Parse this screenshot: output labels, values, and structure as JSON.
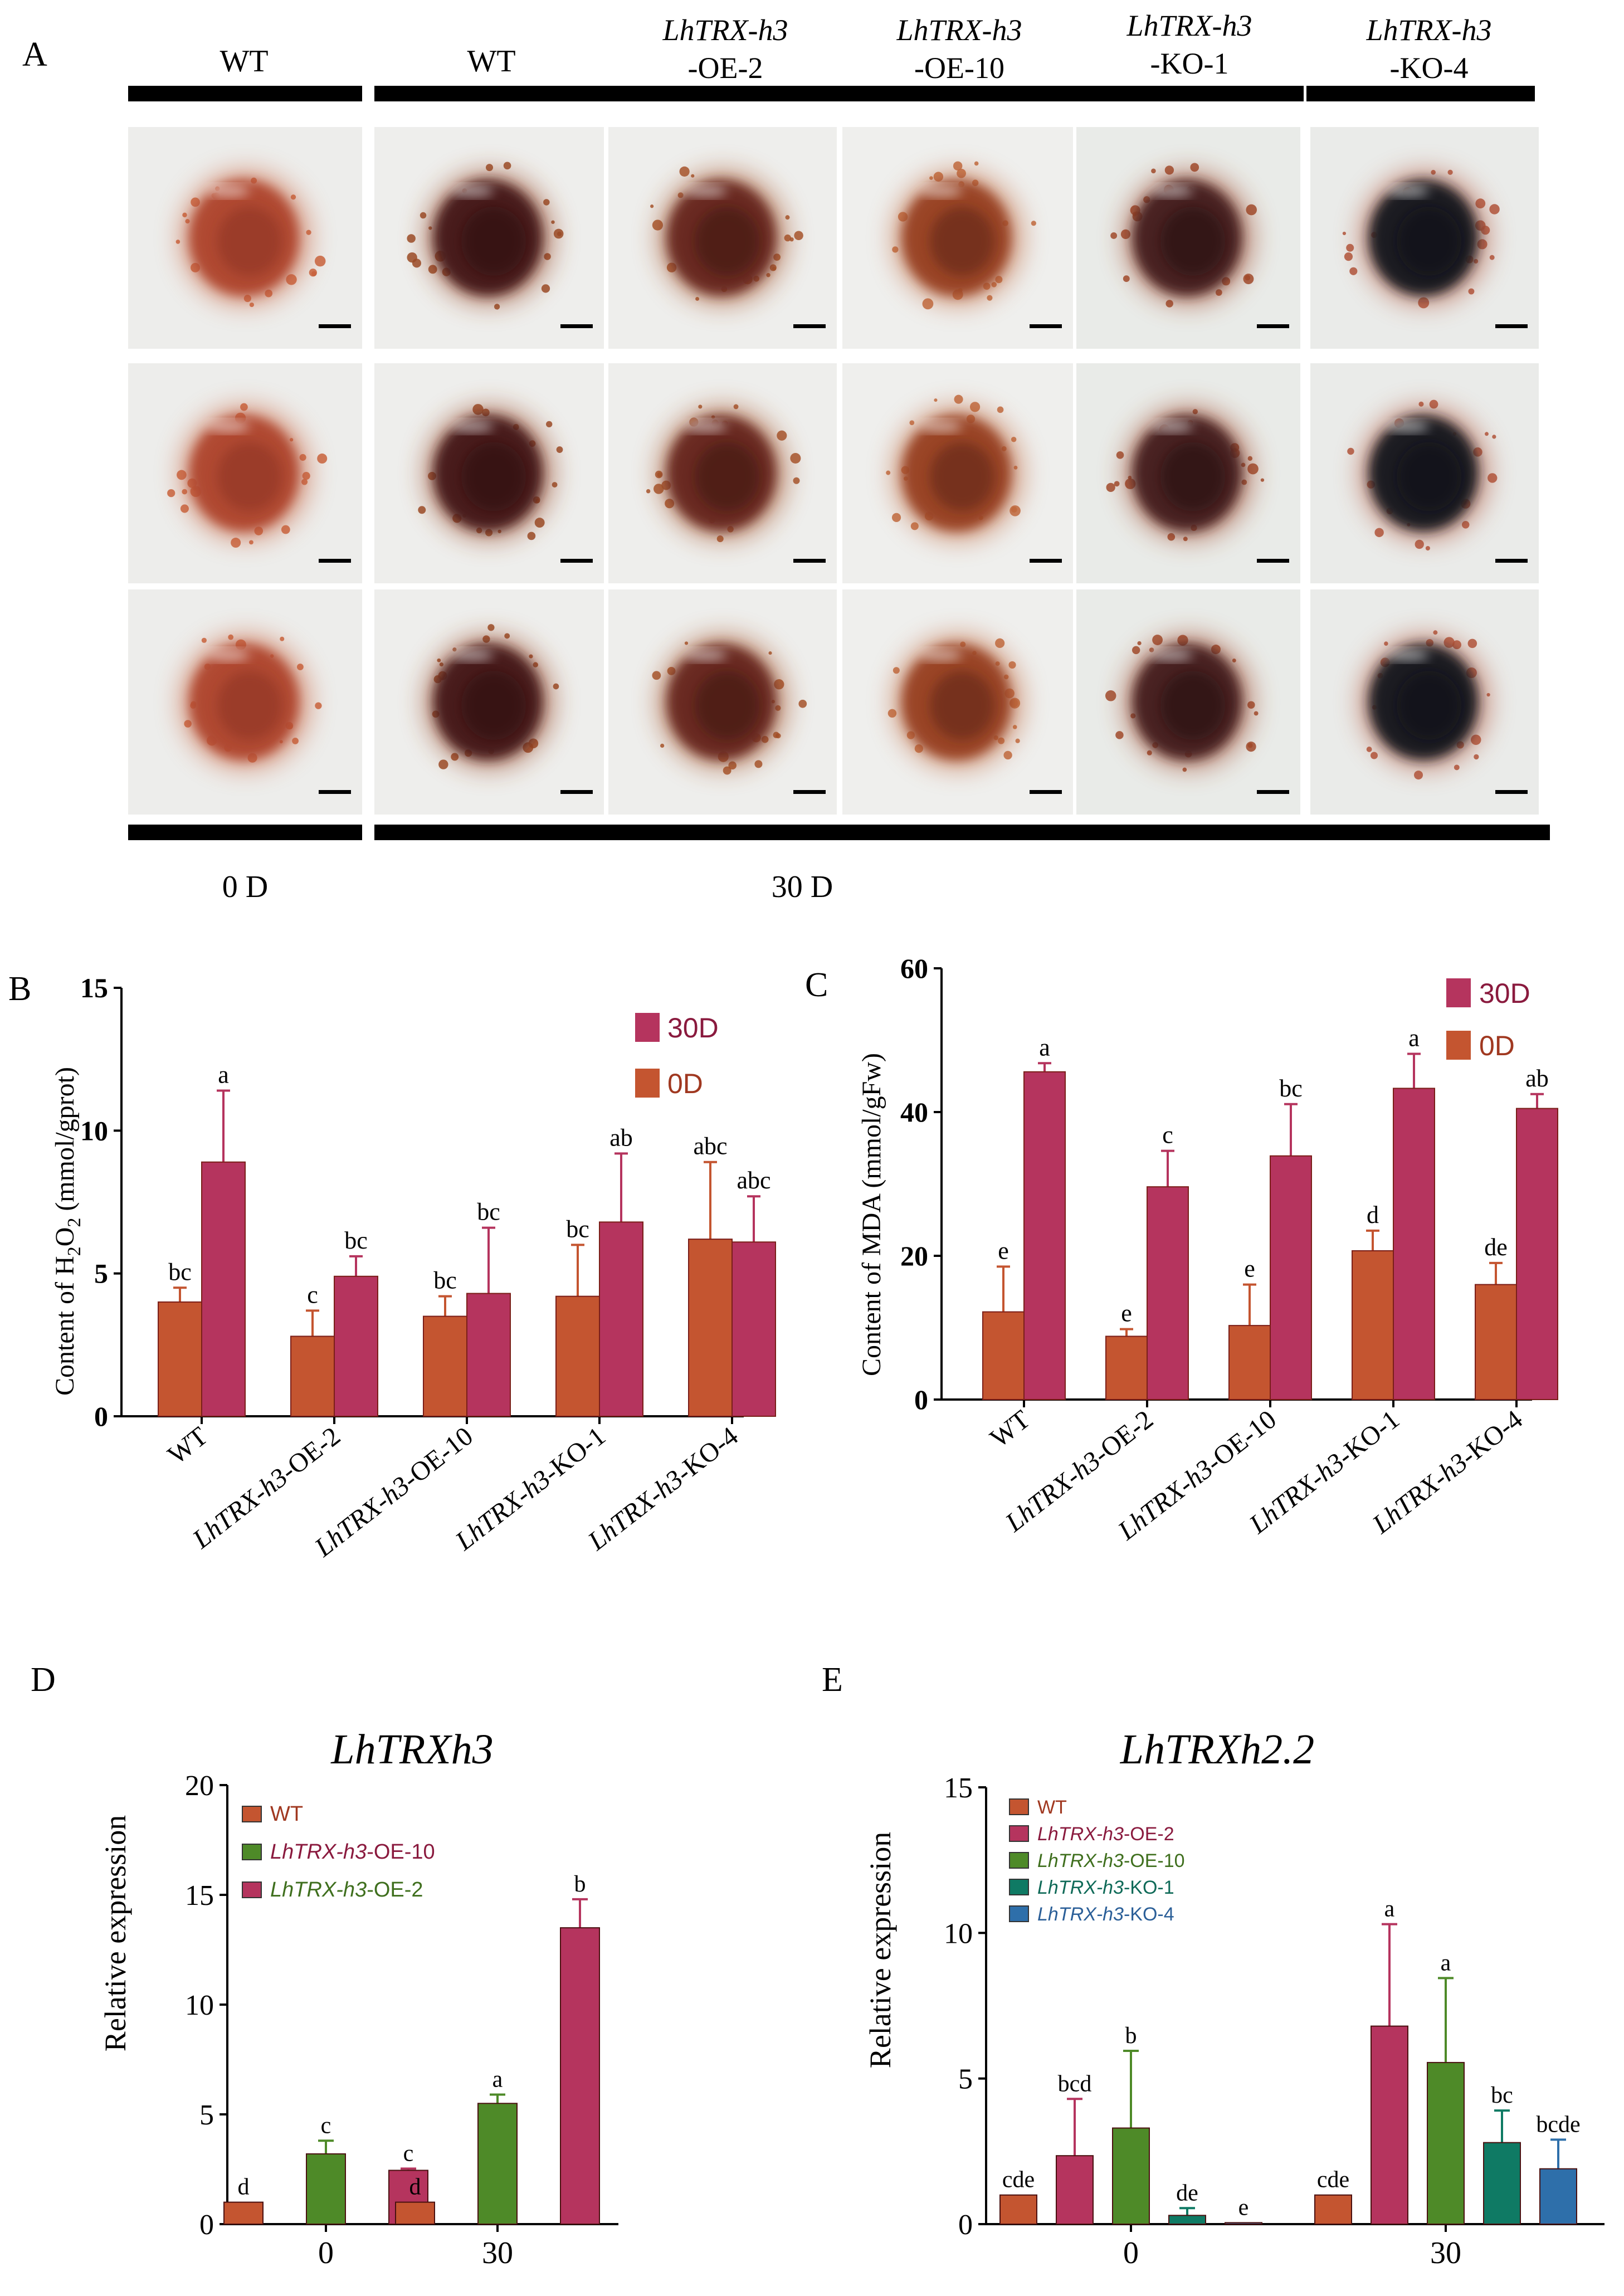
{
  "panel_a": {
    "letter": "A",
    "columns": [
      {
        "italic": "",
        "plain": "WT"
      },
      {
        "italic": "",
        "plain": "WT"
      },
      {
        "italic": "LhTRX-h3",
        "plain": "-OE-2"
      },
      {
        "italic": "LhTRX-h3",
        "plain": "-OE-10"
      },
      {
        "italic": "LhTRX-h3",
        "plain": "-KO-1"
      },
      {
        "italic": "LhTRX-h3",
        "plain": "-KO-4"
      }
    ],
    "time_labels": [
      "0 D",
      "30 D"
    ],
    "photo_styles": [
      {
        "bg": "#ededeb",
        "core": "#b04a30",
        "dark": "#8a3020",
        "spots": "#c8623c"
      },
      {
        "bg": "#eeeeec",
        "core": "#4a1c1c",
        "dark": "#2a0c0c",
        "spots": "#9a4a26"
      },
      {
        "bg": "#eeeeec",
        "core": "#6a2a20",
        "dark": "#3a1410",
        "spots": "#a6542c"
      },
      {
        "bg": "#efefed",
        "core": "#9a4428",
        "dark": "#5a2218",
        "spots": "#c0683c"
      },
      {
        "bg": "#e9ebe8",
        "core": "#4a2420",
        "dark": "#241010",
        "spots": "#a04a2a"
      },
      {
        "bg": "#eaebe9",
        "core": "#1c1c24",
        "dark": "#0c0c12",
        "spots": "#b0543a"
      }
    ]
  },
  "panel_b": {
    "letter": "B",
    "ylabel_pre": "Content of H",
    "ylabel_sub1": "2",
    "ylabel_mid": "O",
    "ylabel_sub2": "2",
    "ylabel_post": " (mmol/gprot)"
  },
  "panel_c": {
    "letter": "C",
    "ylabel": "Content of MDA (mmol/gFw)"
  },
  "panel_d": {
    "letter": "D",
    "title": "LhTRXh3",
    "ylabel": "Relative expression"
  },
  "panel_e": {
    "letter": "E",
    "title": "LhTRXh2.2",
    "ylabel": "Relative expression"
  },
  "legend_bc": {
    "s30": "30D",
    "s0": "0D",
    "s30_color": "#b5345e",
    "s0_color": "#c45530"
  },
  "genotype_ticks": [
    {
      "italic": "",
      "plain": "WT"
    },
    {
      "italic": "LhTRX-h3",
      "plain": "-OE-2"
    },
    {
      "italic": "LhTRX-h3",
      "plain": "-OE-10"
    },
    {
      "italic": "LhTRX-h3",
      "plain": "-KO-1"
    },
    {
      "italic": "LhTRX-h3",
      "plain": "-KO-4"
    }
  ],
  "chart_data": [
    {
      "id": "B",
      "type": "bar",
      "title": "",
      "ylabel": "Content of H2O2 (mmol/gprot)",
      "ylim": [
        0,
        15
      ],
      "yticks": [
        0,
        5,
        10,
        15
      ],
      "categories": [
        "WT",
        "LhTRX-h3-OE-2",
        "LhTRX-h3-OE-10",
        "LhTRX-h3-KO-1",
        "LhTRX-h3-KO-4"
      ],
      "series": [
        {
          "name": "0D",
          "color": "#c45530",
          "values": [
            4.0,
            2.8,
            3.5,
            4.2,
            6.2
          ],
          "errors": [
            0.5,
            0.9,
            0.7,
            1.8,
            2.7
          ],
          "letters": [
            "bc",
            "c",
            "bc",
            "bc",
            "abc"
          ]
        },
        {
          "name": "30D",
          "color": "#b5345e",
          "values": [
            8.9,
            4.9,
            4.3,
            6.8,
            6.1
          ],
          "errors": [
            2.5,
            0.7,
            2.3,
            2.4,
            1.6
          ],
          "letters": [
            "a",
            "bc",
            "bc",
            "ab",
            "abc"
          ]
        }
      ]
    },
    {
      "id": "C",
      "type": "bar",
      "title": "",
      "ylabel": "Content of MDA (mmol/gFw)",
      "ylim": [
        0,
        60
      ],
      "yticks": [
        0,
        20,
        40,
        60
      ],
      "categories": [
        "WT",
        "LhTRX-h3-OE-2",
        "LhTRX-h3-OE-10",
        "LhTRX-h3-KO-1",
        "LhTRX-h3-KO-4"
      ],
      "series": [
        {
          "name": "0D",
          "color": "#c45530",
          "values": [
            12.2,
            8.8,
            10.3,
            20.7,
            16.0
          ],
          "errors": [
            6.3,
            1.0,
            5.7,
            2.8,
            3.0
          ],
          "letters": [
            "e",
            "e",
            "e",
            "d",
            "de"
          ]
        },
        {
          "name": "30D",
          "color": "#b5345e",
          "values": [
            45.6,
            29.6,
            33.9,
            43.3,
            40.5
          ],
          "errors": [
            1.2,
            5.0,
            7.2,
            4.8,
            2.0
          ],
          "letters": [
            "a",
            "c",
            "bc",
            "a",
            "ab"
          ]
        }
      ]
    },
    {
      "id": "D",
      "type": "bar",
      "title": "LhTRXh3",
      "xlabel": "",
      "ylabel": "Relative expression",
      "ylim": [
        0,
        20
      ],
      "yticks": [
        0,
        5,
        10,
        15,
        20
      ],
      "categories": [
        "0",
        "30"
      ],
      "series": [
        {
          "name": "WT",
          "italic": "",
          "plain": "WT",
          "color": "#c45530",
          "label_color": "#a03820",
          "values": [
            1.0,
            1.0
          ],
          "errors": [
            0,
            0
          ],
          "letters": [
            "d",
            "d"
          ]
        },
        {
          "name": "LhTRX-h3-OE-10",
          "italic": "LhTRX-h3",
          "plain": "-OE-10",
          "color": "#4e8a28",
          "label_color": "#8a1a3e",
          "values": [
            3.2,
            5.5
          ],
          "errors": [
            0.6,
            0.4
          ],
          "letters": [
            "c",
            "a"
          ]
        },
        {
          "name": "LhTRX-h3-OE-2",
          "italic": "LhTRX-h3",
          "plain": "-OE-2",
          "color": "#b5345e",
          "label_color": "#3f6f1e",
          "values": [
            2.45,
            13.5
          ],
          "errors": [
            0.08,
            1.3
          ],
          "letters": [
            "c",
            "b"
          ]
        }
      ]
    },
    {
      "id": "E",
      "type": "bar",
      "title": "LhTRXh2.2",
      "xlabel": "",
      "ylabel": "Relative expression",
      "ylim": [
        0,
        15
      ],
      "yticks": [
        0,
        5,
        10,
        15
      ],
      "categories": [
        "0",
        "30"
      ],
      "series": [
        {
          "name": "WT",
          "italic": "",
          "plain": "WT",
          "color": "#c45530",
          "label_color": "#a03820",
          "values": [
            1.0,
            1.0
          ],
          "errors": [
            0,
            0
          ],
          "letters": [
            "cde",
            "cde"
          ]
        },
        {
          "name": "LhTRX-h3-OE-2",
          "italic": "LhTRX-h3",
          "plain": "-OE-2",
          "color": "#b5345e",
          "label_color": "#8a1a3e",
          "values": [
            2.35,
            6.8
          ],
          "errors": [
            1.95,
            3.5
          ],
          "letters": [
            "bcd",
            "a"
          ]
        },
        {
          "name": "LhTRX-h3-OE-10",
          "italic": "LhTRX-h3",
          "plain": "-OE-10",
          "color": "#4e8a28",
          "label_color": "#3f6f1e",
          "values": [
            3.3,
            5.55
          ],
          "errors": [
            2.65,
            2.9
          ],
          "letters": [
            "b",
            "a"
          ]
        },
        {
          "name": "LhTRX-h3-KO-1",
          "italic": "LhTRX-h3",
          "plain": "-KO-1",
          "color": "#0f7a64",
          "label_color": "#0f6a58",
          "values": [
            0.3,
            2.8
          ],
          "errors": [
            0.25,
            1.1
          ],
          "letters": [
            "de",
            "bc"
          ]
        },
        {
          "name": "LhTRX-h3-KO-4",
          "italic": "LhTRX-h3",
          "plain": "-KO-4",
          "color": "#2e6faa",
          "label_color": "#2b5f98",
          "values": [
            0.05,
            1.9
          ],
          "errors": [
            0,
            1.0
          ],
          "letters": [
            "e",
            "bcde"
          ]
        }
      ]
    }
  ]
}
